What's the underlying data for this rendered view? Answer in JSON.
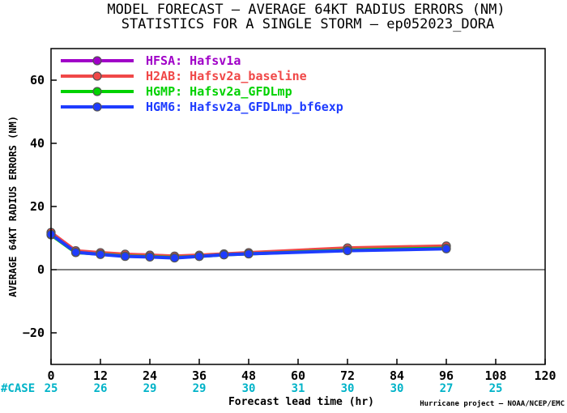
{
  "chart_data": {
    "type": "line",
    "title": "MODEL FORECAST – AVERAGE 64KT RADIUS ERRORS (NM)",
    "subtitle": "STATISTICS FOR A SINGLE STORM – ep052023_DORA",
    "xlabel": "Forecast lead time (hr)",
    "ylabel": "AVERAGE 64KT RADIUS ERRORS (NM)",
    "xlim": [
      0,
      120
    ],
    "ylim": [
      -30,
      70
    ],
    "xticks": [
      0,
      12,
      24,
      36,
      48,
      60,
      72,
      84,
      96,
      108,
      120
    ],
    "yticks": [
      -20,
      0,
      20,
      40,
      60
    ],
    "ytick_labels": [
      "−20",
      "0",
      "20",
      "40",
      "60"
    ],
    "zero_line": true,
    "legend_position": "top-left",
    "case_label": "#CASE",
    "case_color": "#00b3c8",
    "cases": [
      {
        "x": 0,
        "label": "25"
      },
      {
        "x": 12,
        "label": "26"
      },
      {
        "x": 24,
        "label": "29"
      },
      {
        "x": 36,
        "label": "29"
      },
      {
        "x": 48,
        "label": "30"
      },
      {
        "x": 60,
        "label": "31"
      },
      {
        "x": 72,
        "label": "30"
      },
      {
        "x": 84,
        "label": "30"
      },
      {
        "x": 96,
        "label": "27"
      },
      {
        "x": 108,
        "label": "25"
      }
    ],
    "credit": "Hurricane project – NOAA/NCEP/EMC",
    "series": [
      {
        "name": "HFSA: Hafsv1a",
        "color": "#a000c8",
        "x": [
          0,
          6,
          12,
          18,
          24,
          30,
          36,
          42,
          48,
          72,
          96
        ],
        "y": [
          11.5,
          5.8,
          5.2,
          4.8,
          4.6,
          4.2,
          4.5,
          4.9,
          5.3,
          6.8,
          7.4
        ]
      },
      {
        "name": "H2AB: Hafsv2a_baseline",
        "color": "#f04848",
        "x": [
          0,
          6,
          12,
          18,
          24,
          30,
          36,
          42,
          48,
          72,
          96
        ],
        "y": [
          11.8,
          6.0,
          5.4,
          4.9,
          4.6,
          4.3,
          4.6,
          5.0,
          5.4,
          6.9,
          7.5
        ]
      },
      {
        "name": "HGMP: Hafsv2a_GFDLmp",
        "color": "#00d200",
        "x": [
          0,
          6,
          12,
          18,
          24,
          30,
          36,
          42,
          48,
          72,
          96
        ],
        "y": [
          11.0,
          5.4,
          4.9,
          4.3,
          4.1,
          3.8,
          4.2,
          4.7,
          5.0,
          6.2,
          6.8
        ]
      },
      {
        "name": "HGM6: Hafsv2a_GFDLmp_bf6exp",
        "color": "#1e3cff",
        "x": [
          0,
          6,
          12,
          18,
          24,
          30,
          36,
          42,
          48,
          72,
          96
        ],
        "y": [
          11.2,
          5.5,
          4.8,
          4.2,
          4.0,
          3.7,
          4.2,
          4.7,
          5.0,
          6.0,
          6.6
        ]
      }
    ]
  }
}
